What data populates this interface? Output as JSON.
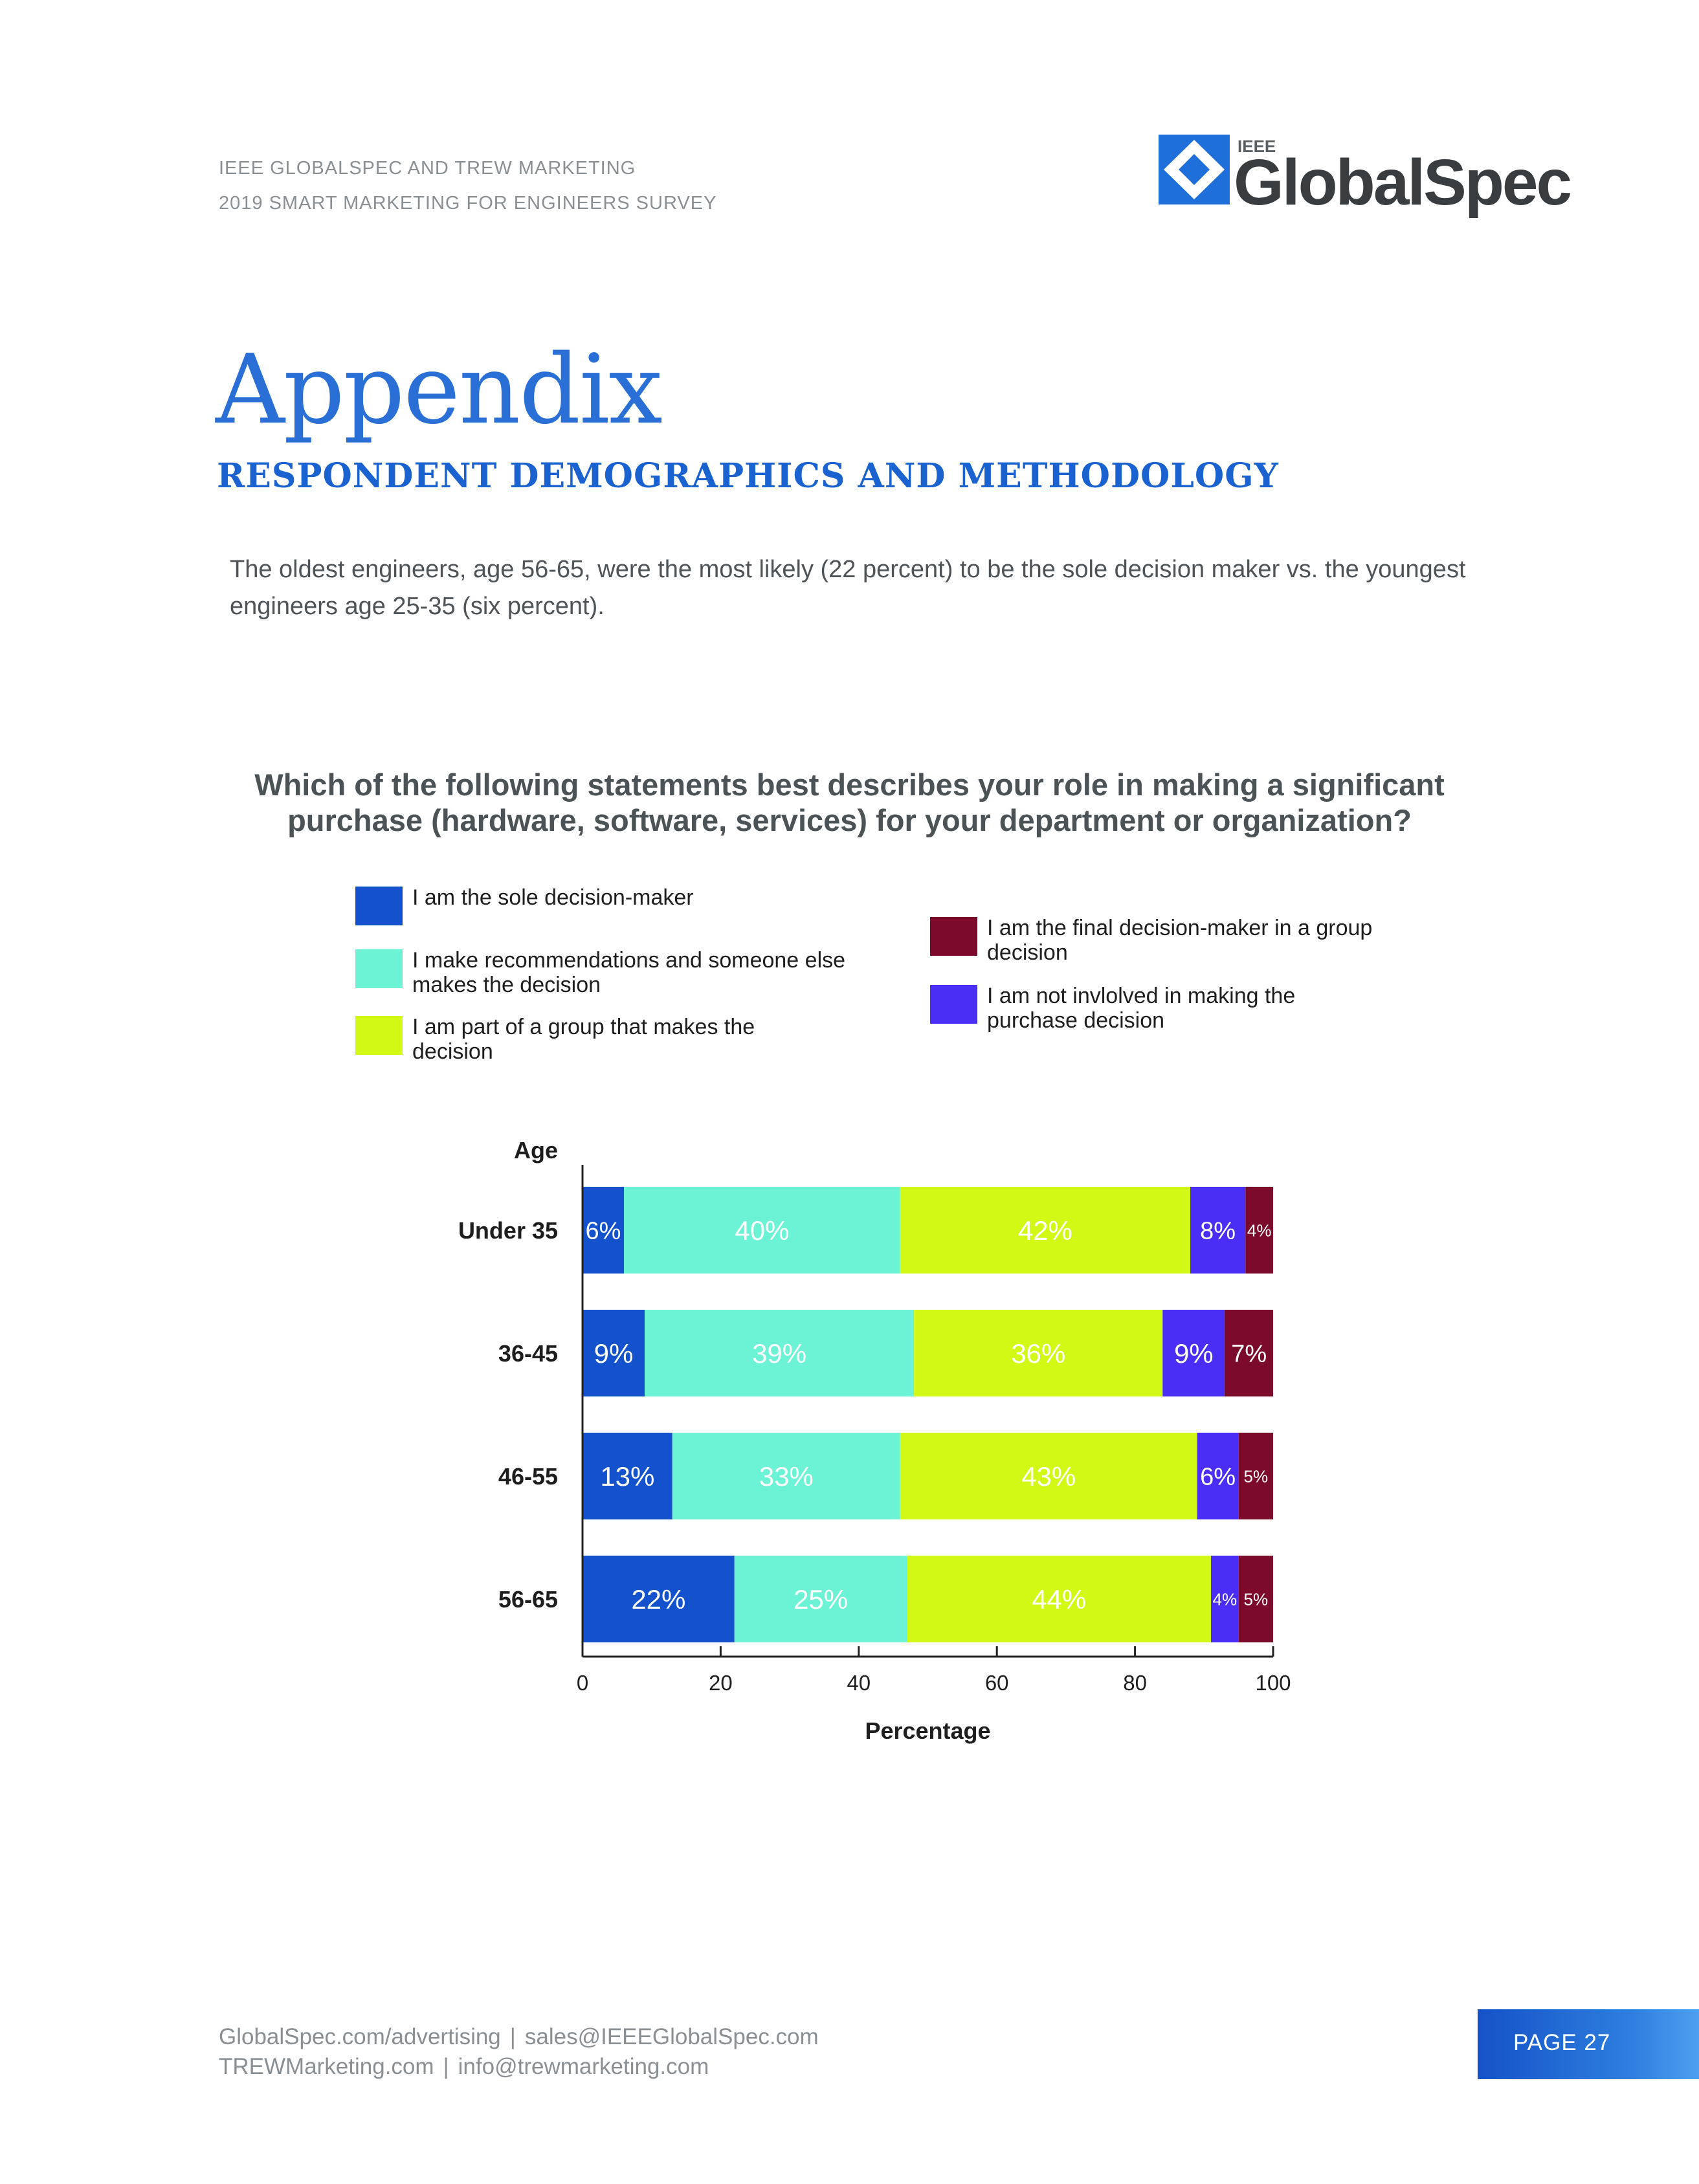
{
  "header": {
    "line1": "IEEE GLOBALSPEC AND TREW MARKETING",
    "line2": "2019 SMART MARKETING FOR ENGINEERS SURVEY",
    "logo_small": "IEEE",
    "logo_main": "GlobalSpec"
  },
  "title": "Appendix",
  "subtitle": "RESPONDENT DEMOGRAPHICS AND METHODOLOGY",
  "intro": "The oldest engineers, age 56-65, were the most likely (22 percent) to be the sole decision maker vs. the youngest engineers age 25-35 (six percent).",
  "colors": {
    "sole": "#1352CC",
    "recommend": "#6CF2D5",
    "group": "#D2F815",
    "not_involved": "#4B2EF6",
    "final": "#7C0A2B",
    "accent_blue": "#1A62CF"
  },
  "chart_data": {
    "type": "bar",
    "orientation": "horizontal",
    "stacked": true,
    "title": "Which of the following statements best describes your role in making a significant purchase (hardware, software, services) for your department or organization?",
    "ylabel": "Age",
    "xlabel": "Percentage",
    "xlim": [
      0,
      100
    ],
    "xticks": [
      0,
      20,
      40,
      60,
      80,
      100
    ],
    "legend_position": "top",
    "categories": [
      "Under 35",
      "36-45",
      "46-55",
      "56-65"
    ],
    "series": [
      {
        "name": "I am the sole decision-maker",
        "color_key": "sole",
        "label_color": "#ffffff",
        "values": [
          6,
          9,
          13,
          22
        ]
      },
      {
        "name": "I make recommendations and someone else makes the decision",
        "color_key": "recommend",
        "label_color": "#ffffff",
        "values": [
          40,
          39,
          33,
          25
        ]
      },
      {
        "name": "I am part of a group that makes the decision",
        "color_key": "group",
        "label_color": "#ffffff",
        "values": [
          42,
          36,
          43,
          44
        ]
      },
      {
        "name": "I am not invlolved in making the purchase decision",
        "color_key": "not_involved",
        "label_color": "#ffffff",
        "values": [
          8,
          9,
          6,
          4
        ]
      },
      {
        "name": "I am the final decision-maker in a group decision",
        "color_key": "final",
        "label_color": "#ffffff",
        "values": [
          4,
          7,
          5,
          5
        ]
      }
    ]
  },
  "footer": {
    "link1": "GlobalSpec.com/advertising",
    "link2": "sales@IEEEGlobalSpec.com",
    "link3": "TREWMarketing.com",
    "link4": "info@trewmarketing.com",
    "separator": "|",
    "page": "PAGE 27"
  }
}
